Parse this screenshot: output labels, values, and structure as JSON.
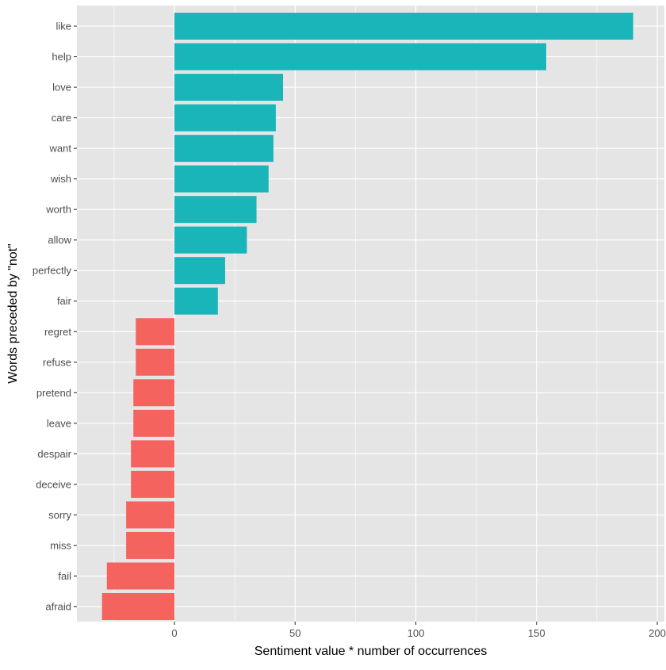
{
  "chart_data": {
    "type": "bar",
    "orientation": "horizontal",
    "title": "",
    "xlabel": "Sentiment value * number of occurrences",
    "ylabel": "Words preceded by \"not\"",
    "xlim": [
      -30,
      200
    ],
    "x_ticks": [
      0,
      50,
      100,
      150,
      200
    ],
    "grid": true,
    "legend": "none",
    "categories": [
      "like",
      "help",
      "love",
      "care",
      "want",
      "wish",
      "worth",
      "allow",
      "perfectly",
      "fair",
      "regret",
      "refuse",
      "pretend",
      "leave",
      "despair",
      "deceive",
      "sorry",
      "miss",
      "fail",
      "afraid"
    ],
    "values": [
      190,
      154,
      45,
      42,
      41,
      39,
      34,
      30,
      21,
      18,
      -16,
      -16,
      -17,
      -17,
      -18,
      -18,
      -20,
      -20,
      -28,
      -30
    ],
    "colors": {
      "positive": "#19B5B9",
      "negative": "#F4635E",
      "panel_background": "#e5e5e5",
      "gridline": "#ffffff"
    }
  }
}
